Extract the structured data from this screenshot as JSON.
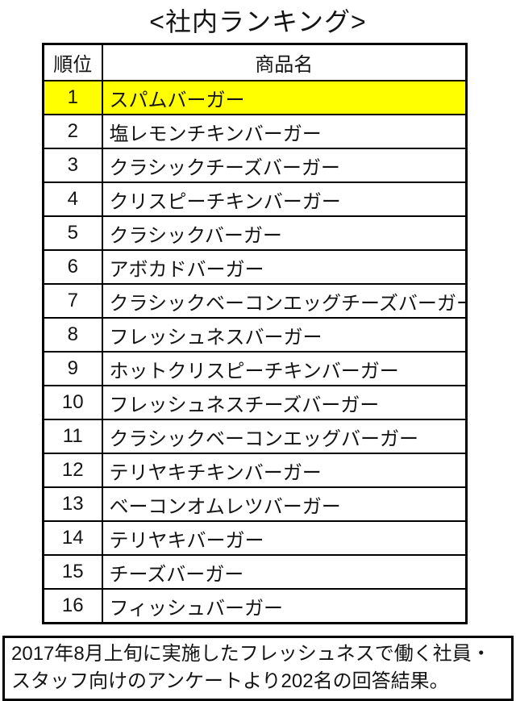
{
  "title": "<社内ランキング>",
  "colors": {
    "highlight": "#ffff00",
    "border": "#000000",
    "background": "#ffffff"
  },
  "table": {
    "headers": {
      "rank": "順位",
      "name": "商品名"
    },
    "rows": [
      {
        "rank": "1",
        "name": "スパムバーガー",
        "highlighted": true
      },
      {
        "rank": "2",
        "name": "塩レモンチキンバーガー",
        "highlighted": false
      },
      {
        "rank": "3",
        "name": "クラシックチーズバーガー",
        "highlighted": false
      },
      {
        "rank": "4",
        "name": "クリスピーチキンバーガー",
        "highlighted": false
      },
      {
        "rank": "5",
        "name": "クラシックバーガー",
        "highlighted": false
      },
      {
        "rank": "6",
        "name": "アボカドバーガー",
        "highlighted": false
      },
      {
        "rank": "7",
        "name": "クラシックベーコンエッグチーズバーガー",
        "highlighted": false
      },
      {
        "rank": "8",
        "name": "フレッシュネスバーガー",
        "highlighted": false
      },
      {
        "rank": "9",
        "name": "ホットクリスピーチキンバーガー",
        "highlighted": false
      },
      {
        "rank": "10",
        "name": "フレッシュネスチーズバーガー",
        "highlighted": false
      },
      {
        "rank": "11",
        "name": "クラシックベーコンエッグバーガー",
        "highlighted": false
      },
      {
        "rank": "12",
        "name": "テリヤキチキンバーガー",
        "highlighted": false
      },
      {
        "rank": "13",
        "name": "ベーコンオムレツバーガー",
        "highlighted": false
      },
      {
        "rank": "14",
        "name": "テリヤキバーガー",
        "highlighted": false
      },
      {
        "rank": "15",
        "name": "チーズバーガー",
        "highlighted": false
      },
      {
        "rank": "16",
        "name": "フィッシュバーガー",
        "highlighted": false
      }
    ]
  },
  "note": {
    "lines": [
      "2017年8月上旬に実施したフレッシュネスで働く社員・",
      "スタッフ向けのアンケートより202名の回答結果。"
    ]
  }
}
